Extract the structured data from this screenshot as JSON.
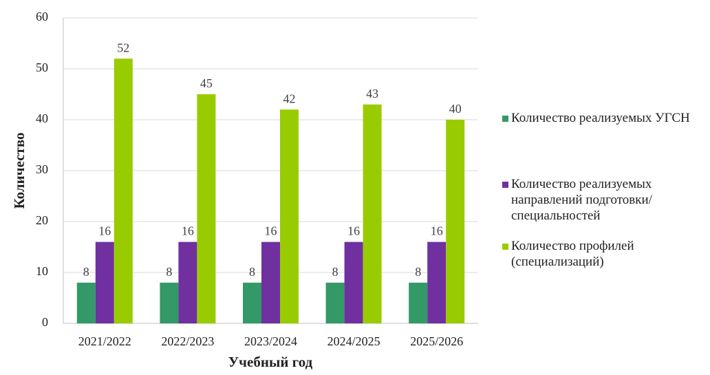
{
  "chart_data": {
    "type": "bar",
    "categories": [
      "2021/2022",
      "2022/2023",
      "2023/2024",
      "2024/2025",
      "2025/2026"
    ],
    "series": [
      {
        "name": "Количество реализуемых УГСН",
        "color": "#339966",
        "values": [
          8,
          8,
          8,
          8,
          8
        ]
      },
      {
        "name": "Количество реализуемых направлений подготовки/специальностей",
        "color": "#7030a0",
        "values": [
          16,
          16,
          16,
          16,
          16
        ]
      },
      {
        "name": "Количество профилей (специализаций)",
        "color": "#99cc00",
        "values": [
          52,
          45,
          42,
          43,
          40
        ]
      }
    ],
    "xlabel": "Учебный год",
    "ylabel": "Количество",
    "ylim": [
      0,
      60
    ],
    "yticks": [
      0,
      10,
      20,
      30,
      40,
      50,
      60
    ],
    "grid": true,
    "legend": "right"
  }
}
